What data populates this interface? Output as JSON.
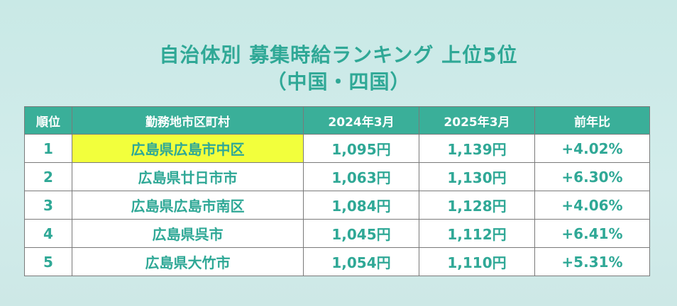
{
  "title": {
    "line1": "自治体別 募集時給ランキング 上位5位",
    "line2": "（中国・四国）"
  },
  "table": {
    "headers": [
      "順位",
      "勤務地市区町村",
      "2024年3月",
      "2025年3月",
      "前年比"
    ],
    "rows": [
      {
        "rank": "1",
        "city": "広島県広島市中区",
        "y2024": "1,095円",
        "y2025": "1,139円",
        "change": "+4.02%"
      },
      {
        "rank": "2",
        "city": "広島県廿日市市",
        "y2024": "1,063円",
        "y2025": "1,130円",
        "change": "+6.30%"
      },
      {
        "rank": "3",
        "city": "広島県広島市南区",
        "y2024": "1,084円",
        "y2025": "1,128円",
        "change": "+4.06%"
      },
      {
        "rank": "4",
        "city": "広島県呉市",
        "y2024": "1,045円",
        "y2025": "1,112円",
        "change": "+6.41%"
      },
      {
        "rank": "5",
        "city": "広島県大竹市",
        "y2024": "1,054円",
        "y2025": "1,110円",
        "change": "+5.31%"
      }
    ]
  },
  "colors": {
    "accent_text": "#2fa896",
    "header_bg": "#3aaf99",
    "highlight": "#f2ff3c"
  }
}
